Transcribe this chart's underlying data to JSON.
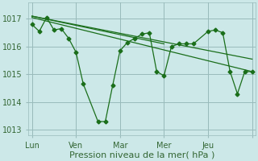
{
  "background_color": "#cce8e8",
  "grid_color": "#99bbbb",
  "line_color": "#1a6e1a",
  "marker_color": "#1a6e1a",
  "xlabel": "Pression niveau de la mer( hPa )",
  "xlabel_fontsize": 8,
  "tick_label_color": "#336633",
  "tick_fontsize": 7,
  "x_tick_positions": [
    0,
    24,
    48,
    72,
    96,
    120
  ],
  "x_tick_labels": [
    "Lun",
    "Ven",
    "Mar",
    "Mer",
    "Jeu",
    ""
  ],
  "main_series_x": [
    0,
    4,
    8,
    12,
    16,
    20,
    24,
    28,
    36,
    40,
    44,
    48,
    52,
    56,
    60,
    64,
    68,
    72,
    76,
    80,
    84,
    88,
    96,
    100,
    104,
    108,
    112,
    116,
    120
  ],
  "main_series_y": [
    1016.8,
    1016.55,
    1017.05,
    1016.6,
    1016.65,
    1016.3,
    1015.8,
    1014.65,
    1013.3,
    1013.3,
    1014.6,
    1015.85,
    1016.15,
    1016.3,
    1016.45,
    1016.5,
    1015.1,
    1014.95,
    1016.0,
    1016.1,
    1016.1,
    1016.1,
    1016.55,
    1016.6,
    1016.5,
    1015.1,
    1014.3,
    1015.1,
    1015.1
  ],
  "trend1_x": [
    0,
    120
  ],
  "trend1_y": [
    1017.05,
    1015.1
  ],
  "trend2_x": [
    0,
    120
  ],
  "trend2_y": [
    1017.1,
    1015.55
  ],
  "trend3_x": [
    0,
    72
  ],
  "trend3_y": [
    1017.1,
    1016.1
  ],
  "ylim": [
    1012.8,
    1017.6
  ],
  "xlim": [
    -2,
    122
  ],
  "yticks": [
    1013,
    1014,
    1015,
    1016,
    1017
  ]
}
